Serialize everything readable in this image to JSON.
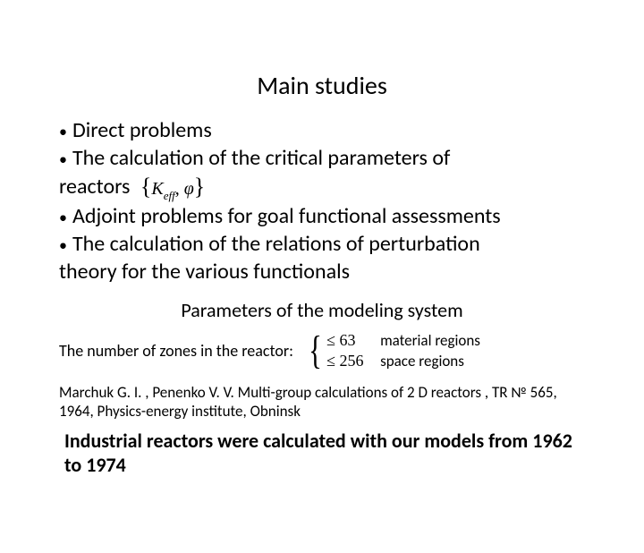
{
  "title": "Main studies",
  "bullets": {
    "b1": "Direct problems",
    "b2a": "The calculation of the critical parameters of",
    "b2b": "reactors",
    "math_keff": "K",
    "math_keff_sub": "eff",
    "math_sep": ", ",
    "math_phi": "φ",
    "b3": "Adjoint problems for goal functional assessments",
    "b4a": "The calculation of the relations of perturbation",
    "b4b": "theory for the various functionals"
  },
  "subhead": "Parameters of the modeling system",
  "params": {
    "label": "The number of zones in the reactor:",
    "row1": {
      "expr": "≤ 63",
      "text": "material regions"
    },
    "row2": {
      "expr": "≤ 256",
      "text": "space regions"
    }
  },
  "citation": "Marchuk G. I. , Penenko V. V. Multi-group  calculations of 2 D reactors , TR № 565, 1964, Physics-energy institute, Obninsk",
  "closing": "Industrial reactors were calculated with our models from 1962 to 1974",
  "colors": {
    "text": "#000000",
    "bg": "#ffffff"
  },
  "typography": {
    "title_fontsize": 28,
    "body_fontsize": 24,
    "sub_fontsize": 22,
    "small_fontsize": 18,
    "citation_fontsize": 17,
    "closing_fontsize": 22
  }
}
